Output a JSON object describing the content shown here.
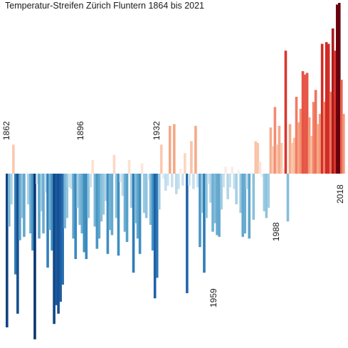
{
  "chart_data": {
    "type": "bar",
    "title": "Temperatur-Streifen Zürich Fluntern 1864 bis 2021",
    "xlabel": "",
    "ylabel": "",
    "x_start": 1864,
    "x_end": 2021,
    "ylim": [
      -1.0,
      1.0
    ],
    "grid": false,
    "legend": "none",
    "year_labels": [
      {
        "text": "1862",
        "position": "above"
      },
      {
        "text": "1896",
        "position": "above"
      },
      {
        "text": "1932",
        "position": "above"
      },
      {
        "text": "1959",
        "position": "below"
      },
      {
        "text": "1988",
        "position": "below"
      },
      {
        "text": "2018",
        "position": "above"
      }
    ],
    "values": [
      -0.9,
      -0.31,
      -0.18,
      0.17,
      -0.59,
      -0.82,
      -0.39,
      -0.26,
      -0.37,
      0.01,
      -0.18,
      -0.35,
      -0.45,
      -0.97,
      -0.06,
      -0.38,
      -0.22,
      -0.35,
      -0.11,
      -0.55,
      -0.33,
      -0.45,
      -0.88,
      -0.77,
      -0.82,
      -0.75,
      -0.65,
      -0.32,
      -0.26,
      -0.08,
      -0.09,
      -0.38,
      -0.5,
      -0.2,
      -0.3,
      -0.35,
      -0.46,
      -0.5,
      -0.26,
      -0.08,
      0.08,
      -0.31,
      -0.44,
      -0.38,
      -0.28,
      -0.24,
      -0.16,
      -0.47,
      -0.33,
      -0.36,
      0.11,
      -0.26,
      -0.48,
      -0.05,
      -0.13,
      -0.34,
      -0.4,
      0.08,
      -0.2,
      -0.58,
      -0.29,
      -0.38,
      -0.47,
      0.06,
      -0.23,
      -0.26,
      -0.04,
      -0.3,
      -0.45,
      -0.73,
      -0.61,
      -0.21,
      0.17,
      -0.03,
      -0.1,
      -0.07,
      0.28,
      -0.08,
      0.29,
      -0.12,
      -0.09,
      0.03,
      -0.07,
      0.12,
      -0.7,
      -0.07,
      0.19,
      -0.09,
      0.28,
      -0.08,
      -0.43,
      -0.23,
      -0.58,
      -0.26,
      -0.06,
      -0.17,
      -0.34,
      -0.29,
      -0.36,
      -0.37,
      -0.21,
      -0.08,
      0.04,
      -0.15,
      -0.08,
      0.04,
      -0.09,
      -0.18,
      0.02,
      -0.23,
      -0.37,
      -0.35,
      -0.09,
      -0.38,
      0.01,
      -0.27,
      0.19,
      0.18,
      0.07,
      -0.02,
      -0.22,
      -0.26,
      -0.2,
      0.27,
      0.16,
      0.39,
      0.17,
      0.28,
      0.18,
      0.03,
      0.72,
      -0.28,
      0.29,
      0.18,
      0.21,
      0.45,
      0.3,
      0.38,
      0.6,
      0.58,
      0.59,
      0.33,
      0.22,
      0.42,
      0.49,
      0.29,
      0.35,
      0.76,
      0.42,
      0.77,
      0.76,
      0.48,
      0.85,
      0.72,
      0.99,
      1.0,
      0.55,
      0.35
    ]
  }
}
